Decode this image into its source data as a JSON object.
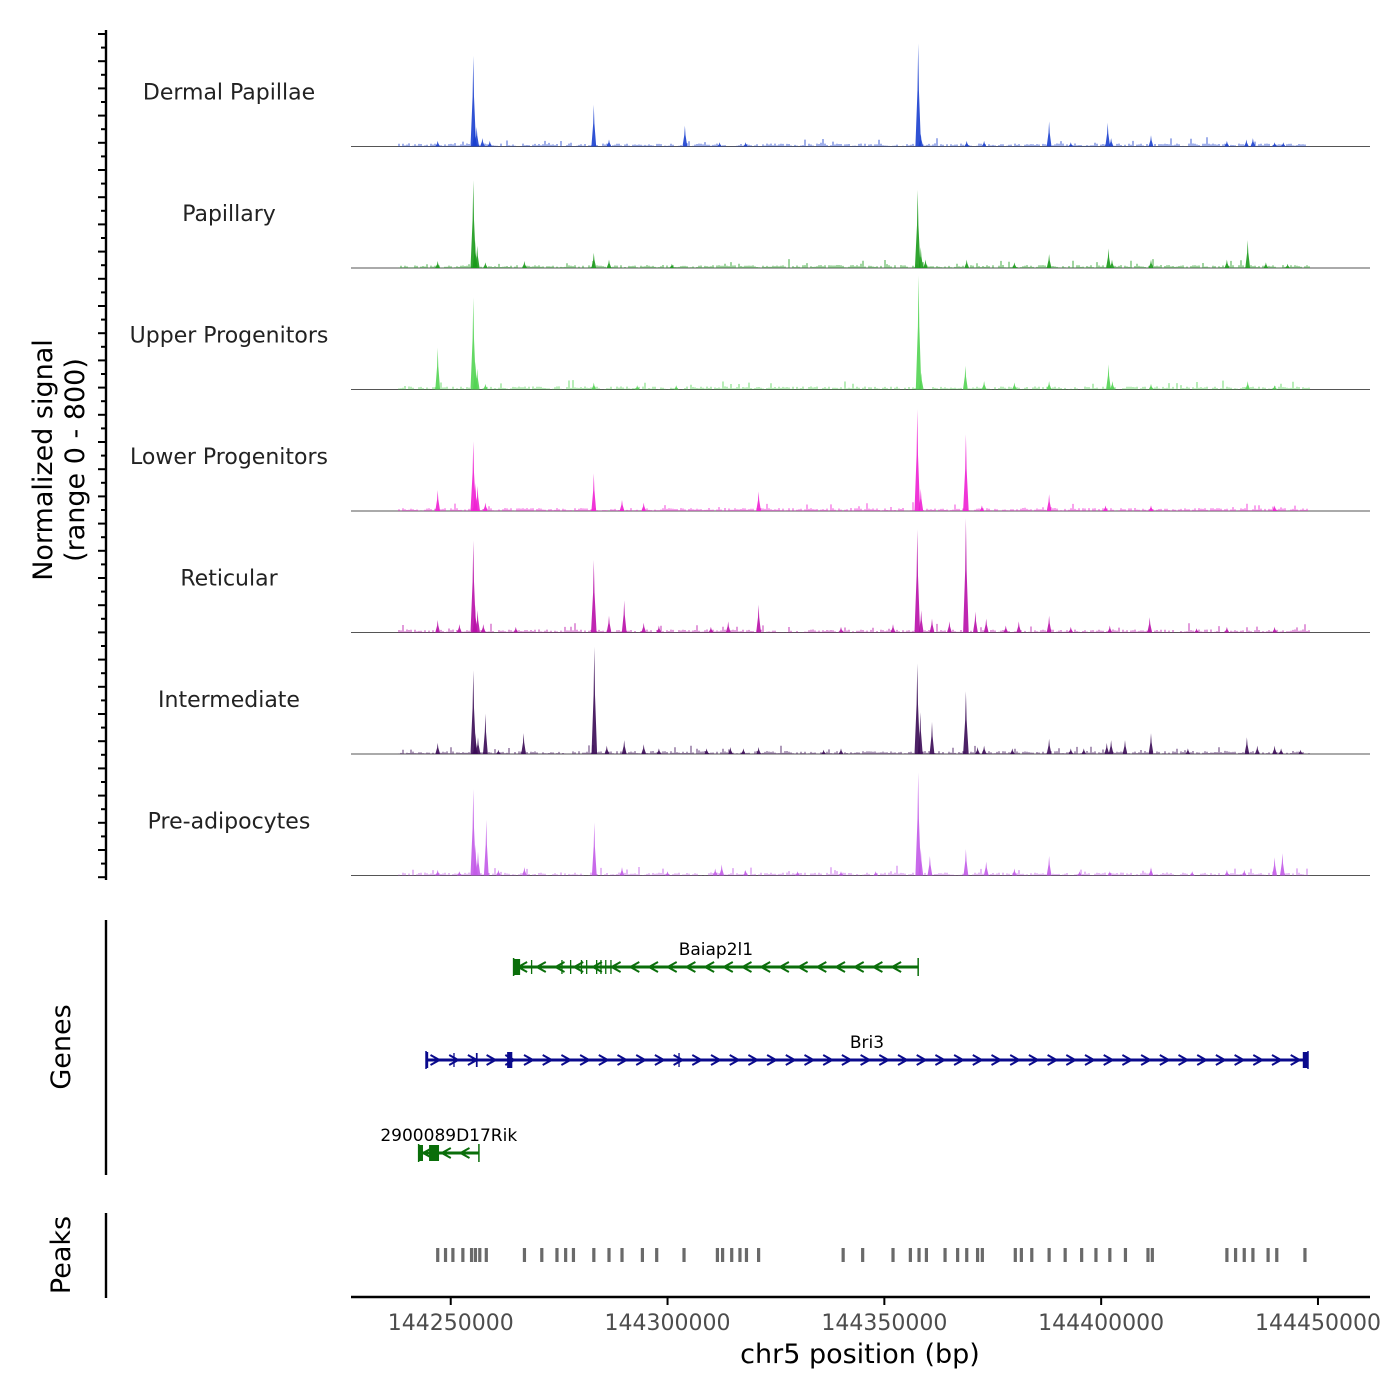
{
  "chart_data": {
    "type": "area",
    "title": "",
    "ylabel_line1": "Normalized signal",
    "ylabel_line2": "(range 0 - 800)",
    "xlabel": "chr5 position (bp)",
    "chromosome": "chr5",
    "xlim": [
      144227000,
      144462000
    ],
    "ylim": [
      0,
      800
    ],
    "x_ticks": [
      144250000,
      144300000,
      144350000,
      144400000,
      144450000
    ],
    "x_tick_labels": [
      "144250000",
      "144300000",
      "144350000",
      "144400000",
      "144450000"
    ],
    "track_labels": {
      "genes": "Genes",
      "peaks": "Peaks"
    },
    "series": [
      {
        "name": "Dermal Papillae",
        "color": "#1a3fcf",
        "peaks": [
          [
            144247000,
            40
          ],
          [
            144255200,
            650
          ],
          [
            144255500,
            150
          ],
          [
            144256000,
            140
          ],
          [
            144257300,
            60
          ],
          [
            144259000,
            40
          ],
          [
            144283000,
            300
          ],
          [
            144286500,
            50
          ],
          [
            144304000,
            150
          ],
          [
            144312000,
            30
          ],
          [
            144318000,
            30
          ],
          [
            144357800,
            740
          ],
          [
            144358400,
            90
          ],
          [
            144369000,
            40
          ],
          [
            144373000,
            40
          ],
          [
            144388000,
            180
          ],
          [
            144393000,
            30
          ],
          [
            144401500,
            170
          ],
          [
            144402300,
            60
          ],
          [
            144411500,
            80
          ],
          [
            144429000,
            40
          ],
          [
            144433500,
            50
          ],
          [
            144435000,
            60
          ],
          [
            144440000,
            30
          ],
          [
            144442000,
            30
          ]
        ]
      },
      {
        "name": "Papillary",
        "color": "#1a9a1a",
        "peaks": [
          [
            144247000,
            50
          ],
          [
            144255200,
            630
          ],
          [
            144255600,
            200
          ],
          [
            144256100,
            160
          ],
          [
            144258000,
            40
          ],
          [
            144267000,
            50
          ],
          [
            144283000,
            110
          ],
          [
            144286500,
            60
          ],
          [
            144301000,
            30
          ],
          [
            144357700,
            560
          ],
          [
            144358400,
            150
          ],
          [
            144359500,
            60
          ],
          [
            144369000,
            60
          ],
          [
            144380000,
            40
          ],
          [
            144388000,
            100
          ],
          [
            144401700,
            140
          ],
          [
            144402500,
            60
          ],
          [
            144411500,
            60
          ],
          [
            144429000,
            60
          ],
          [
            144433800,
            200
          ],
          [
            144438000,
            40
          ],
          [
            144443000,
            30
          ]
        ]
      },
      {
        "name": "Upper Progenitors",
        "color": "#52d452",
        "peaks": [
          [
            144247000,
            300
          ],
          [
            144255200,
            660
          ],
          [
            144255700,
            200
          ],
          [
            144256100,
            150
          ],
          [
            144258000,
            40
          ],
          [
            144283000,
            50
          ],
          [
            144293000,
            30
          ],
          [
            144302000,
            30
          ],
          [
            144357900,
            820
          ],
          [
            144358500,
            120
          ],
          [
            144368700,
            170
          ],
          [
            144373000,
            60
          ],
          [
            144380000,
            50
          ],
          [
            144388000,
            60
          ],
          [
            144401700,
            180
          ],
          [
            144402600,
            60
          ],
          [
            144411500,
            40
          ],
          [
            144433800,
            60
          ],
          [
            144440000,
            30
          ]
        ]
      },
      {
        "name": "Lower Progenitors",
        "color": "#ee1fd3",
        "peaks": [
          [
            144247000,
            150
          ],
          [
            144255200,
            500
          ],
          [
            144255700,
            200
          ],
          [
            144256200,
            180
          ],
          [
            144258000,
            60
          ],
          [
            144283000,
            270
          ],
          [
            144289500,
            80
          ],
          [
            144294500,
            60
          ],
          [
            144321000,
            140
          ],
          [
            144357600,
            730
          ],
          [
            144358400,
            160
          ],
          [
            144368800,
            550
          ],
          [
            144372500,
            40
          ],
          [
            144388000,
            120
          ],
          [
            144401000,
            40
          ],
          [
            144411500,
            40
          ],
          [
            144440000,
            40
          ]
        ]
      },
      {
        "name": "Reticular",
        "color": "#b80ea8",
        "peaks": [
          [
            144247000,
            90
          ],
          [
            144252000,
            60
          ],
          [
            144255200,
            660
          ],
          [
            144255600,
            200
          ],
          [
            144256200,
            160
          ],
          [
            144257500,
            60
          ],
          [
            144265000,
            40
          ],
          [
            144283000,
            520
          ],
          [
            144286500,
            120
          ],
          [
            144290000,
            230
          ],
          [
            144294500,
            70
          ],
          [
            144298000,
            50
          ],
          [
            144310000,
            40
          ],
          [
            144314000,
            80
          ],
          [
            144321000,
            200
          ],
          [
            144340000,
            40
          ],
          [
            144352000,
            60
          ],
          [
            144357600,
            740
          ],
          [
            144358500,
            160
          ],
          [
            144361000,
            100
          ],
          [
            144365000,
            80
          ],
          [
            144368800,
            820
          ],
          [
            144371000,
            150
          ],
          [
            144373500,
            100
          ],
          [
            144378000,
            50
          ],
          [
            144381000,
            80
          ],
          [
            144388000,
            120
          ],
          [
            144393000,
            40
          ],
          [
            144402000,
            50
          ],
          [
            144411200,
            110
          ],
          [
            144422000,
            30
          ],
          [
            144429000,
            40
          ],
          [
            144440000,
            40
          ]
        ]
      },
      {
        "name": "Intermediate",
        "color": "#3a0a55",
        "peaks": [
          [
            144247000,
            80
          ],
          [
            144255200,
            600
          ],
          [
            144255700,
            150
          ],
          [
            144256300,
            120
          ],
          [
            144258000,
            290
          ],
          [
            144261000,
            30
          ],
          [
            144266800,
            150
          ],
          [
            144283100,
            770
          ],
          [
            144286000,
            60
          ],
          [
            144290000,
            100
          ],
          [
            144294500,
            70
          ],
          [
            144298000,
            40
          ],
          [
            144309000,
            40
          ],
          [
            144314500,
            50
          ],
          [
            144317500,
            40
          ],
          [
            144321000,
            50
          ],
          [
            144336000,
            30
          ],
          [
            144340000,
            40
          ],
          [
            144357600,
            650
          ],
          [
            144358300,
            300
          ],
          [
            144361000,
            230
          ],
          [
            144368800,
            450
          ],
          [
            144371500,
            50
          ],
          [
            144373000,
            60
          ],
          [
            144379500,
            40
          ],
          [
            144388000,
            110
          ],
          [
            144393000,
            40
          ],
          [
            144396000,
            40
          ],
          [
            144401300,
            80
          ],
          [
            144402300,
            100
          ],
          [
            144405500,
            100
          ],
          [
            144411500,
            150
          ],
          [
            144420000,
            40
          ],
          [
            144433600,
            120
          ],
          [
            144436000,
            60
          ],
          [
            144440000,
            60
          ],
          [
            144441500,
            40
          ],
          [
            144446000,
            30
          ]
        ]
      },
      {
        "name": "Pre-adipocytes",
        "color": "#c25ae8",
        "peaks": [
          [
            144247000,
            40
          ],
          [
            144252000,
            30
          ],
          [
            144255200,
            620
          ],
          [
            144255700,
            220
          ],
          [
            144256300,
            170
          ],
          [
            144258200,
            400
          ],
          [
            144261000,
            40
          ],
          [
            144267000,
            60
          ],
          [
            144283100,
            380
          ],
          [
            144289500,
            60
          ],
          [
            144300000,
            30
          ],
          [
            144311000,
            50
          ],
          [
            144312500,
            80
          ],
          [
            144318000,
            40
          ],
          [
            144330000,
            30
          ],
          [
            144340000,
            30
          ],
          [
            144348000,
            30
          ],
          [
            144357800,
            740
          ],
          [
            144358400,
            200
          ],
          [
            144360500,
            140
          ],
          [
            144368800,
            190
          ],
          [
            144373500,
            100
          ],
          [
            144380000,
            50
          ],
          [
            144388000,
            140
          ],
          [
            144395000,
            30
          ],
          [
            144402000,
            30
          ],
          [
            144411500,
            60
          ],
          [
            144421000,
            30
          ],
          [
            144429000,
            40
          ],
          [
            144433000,
            40
          ],
          [
            144440000,
            130
          ],
          [
            144441800,
            160
          ]
        ]
      }
    ],
    "genes": [
      {
        "name": "Baiap2l1",
        "strand": "-",
        "color": "#0a6e0a",
        "row": 0,
        "start": 144264500,
        "end": 144357800,
        "exons": [
          [
            144264500,
            144266000
          ],
          [
            144268500,
            144268800
          ],
          [
            144275500,
            144275800
          ],
          [
            144277500,
            144277800
          ],
          [
            144280000,
            144280300
          ],
          [
            144281200,
            144281500
          ],
          [
            144283500,
            144283800
          ],
          [
            144284500,
            144284800
          ],
          [
            144285600,
            144285900
          ],
          [
            144286800,
            144287100
          ]
        ]
      },
      {
        "name": "Bri3",
        "strand": "+",
        "color": "#0a0a8c",
        "row": 1,
        "start": 144244300,
        "end": 144447700,
        "exons": [
          [
            144244300,
            144244800
          ],
          [
            144250600,
            144250900
          ],
          [
            144255800,
            144256200
          ],
          [
            144263000,
            144264200
          ],
          [
            144302500,
            144302800
          ],
          [
            144446500,
            144447700
          ]
        ]
      },
      {
        "name": "2900089D17Rik",
        "strand": "-",
        "color": "#0a6e0a",
        "row": 2,
        "start": 144242600,
        "end": 144256500,
        "exons": [
          [
            144242600,
            144243600
          ],
          [
            144245000,
            144247300
          ]
        ]
      }
    ],
    "peak_regions": [
      144247000,
      144248800,
      144250500,
      144252800,
      144254800,
      144255700,
      144256700,
      144258200,
      144267000,
      144271000,
      144274500,
      144276500,
      144278300,
      144283000,
      144286500,
      144289500,
      144294200,
      144297500,
      144303800,
      144311500,
      144312700,
      144314800,
      144316700,
      144318200,
      144321000,
      144340500,
      144345000,
      144352000,
      144356000,
      144358000,
      144359700,
      144364000,
      144366900,
      144369000,
      144371500,
      144372600,
      144380200,
      144381600,
      144384000,
      144388000,
      144391700,
      144395500,
      144398800,
      144402000,
      144405600,
      144410800,
      144411800,
      144429000,
      144431000,
      144433000,
      144435000,
      144438500,
      144440500,
      144447000
    ]
  }
}
